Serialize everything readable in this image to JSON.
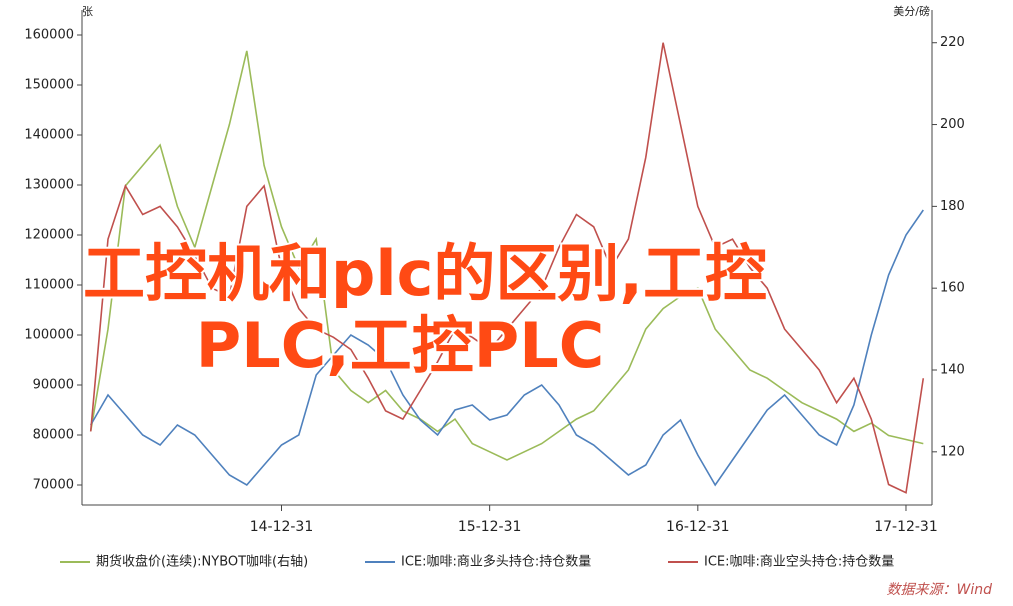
{
  "chart_data": {
    "type": "line",
    "y_label": "张",
    "y2_label": "美分/磅",
    "annotations": [
      "工控机和plc的区别,工控",
      "PLC,工控PLC"
    ],
    "source": "数据来源：Wind",
    "categories": [
      null,
      null,
      null,
      null,
      null,
      null,
      null,
      null,
      null,
      null,
      null,
      "14-12-31",
      null,
      null,
      null,
      null,
      null,
      null,
      null,
      null,
      null,
      null,
      null,
      "15-12-31",
      null,
      null,
      null,
      null,
      null,
      null,
      null,
      null,
      null,
      null,
      null,
      "16-12-31",
      null,
      null,
      null,
      null,
      null,
      null,
      null,
      null,
      null,
      null,
      null,
      "17-12-31",
      null
    ],
    "ylim": [
      66000,
      165000
    ],
    "yticks": [
      70000,
      80000,
      90000,
      100000,
      110000,
      120000,
      130000,
      140000,
      150000,
      160000
    ],
    "y2lim": [
      107,
      228
    ],
    "y2ticks": [
      120,
      140,
      160,
      180,
      200,
      220
    ],
    "grid": false,
    "legend": "bottom",
    "series": [
      {
        "name": "期货收盘价(连续):NYBOT咖啡(右轴)",
        "color": "#9bbb59",
        "axis": "y2",
        "values": [
          125,
          150,
          185,
          190,
          195,
          180,
          170,
          185,
          200,
          218,
          190,
          175,
          165,
          172,
          140,
          135,
          132,
          135,
          130,
          128,
          125,
          128,
          122,
          120,
          118,
          120,
          122,
          125,
          128,
          130,
          135,
          140,
          150,
          155,
          158,
          160,
          150,
          145,
          140,
          138,
          135,
          132,
          130,
          128,
          125,
          127,
          124,
          123,
          122
        ]
      },
      {
        "name": "ICE:咖啡:商业多头持仓:持仓数量",
        "color": "#4f81bd",
        "values": [
          82000,
          88000,
          84000,
          80000,
          78000,
          82000,
          80000,
          76000,
          72000,
          70000,
          74000,
          78000,
          80000,
          92000,
          96000,
          100000,
          98000,
          95000,
          88000,
          83000,
          80000,
          85000,
          86000,
          83000,
          84000,
          88000,
          90000,
          86000,
          80000,
          78000,
          75000,
          72000,
          74000,
          80000,
          83000,
          76000,
          70000,
          75000,
          80000,
          85000,
          88000,
          84000,
          80000,
          78000,
          86000,
          100000,
          112000,
          120000,
          125000
        ]
      },
      {
        "name": "ICE:咖啡:商业空头持仓:持仓数量",
        "color": "#c0504d",
        "axis": "y2",
        "values": [
          125,
          172,
          185,
          178,
          180,
          175,
          168,
          160,
          158,
          180,
          185,
          165,
          155,
          150,
          148,
          145,
          138,
          130,
          128,
          135,
          142,
          150,
          148,
          145,
          150,
          155,
          160,
          170,
          178,
          175,
          165,
          172,
          192,
          220,
          200,
          180,
          170,
          172,
          165,
          160,
          150,
          145,
          140,
          132,
          138,
          128,
          112,
          110,
          138
        ]
      }
    ]
  }
}
